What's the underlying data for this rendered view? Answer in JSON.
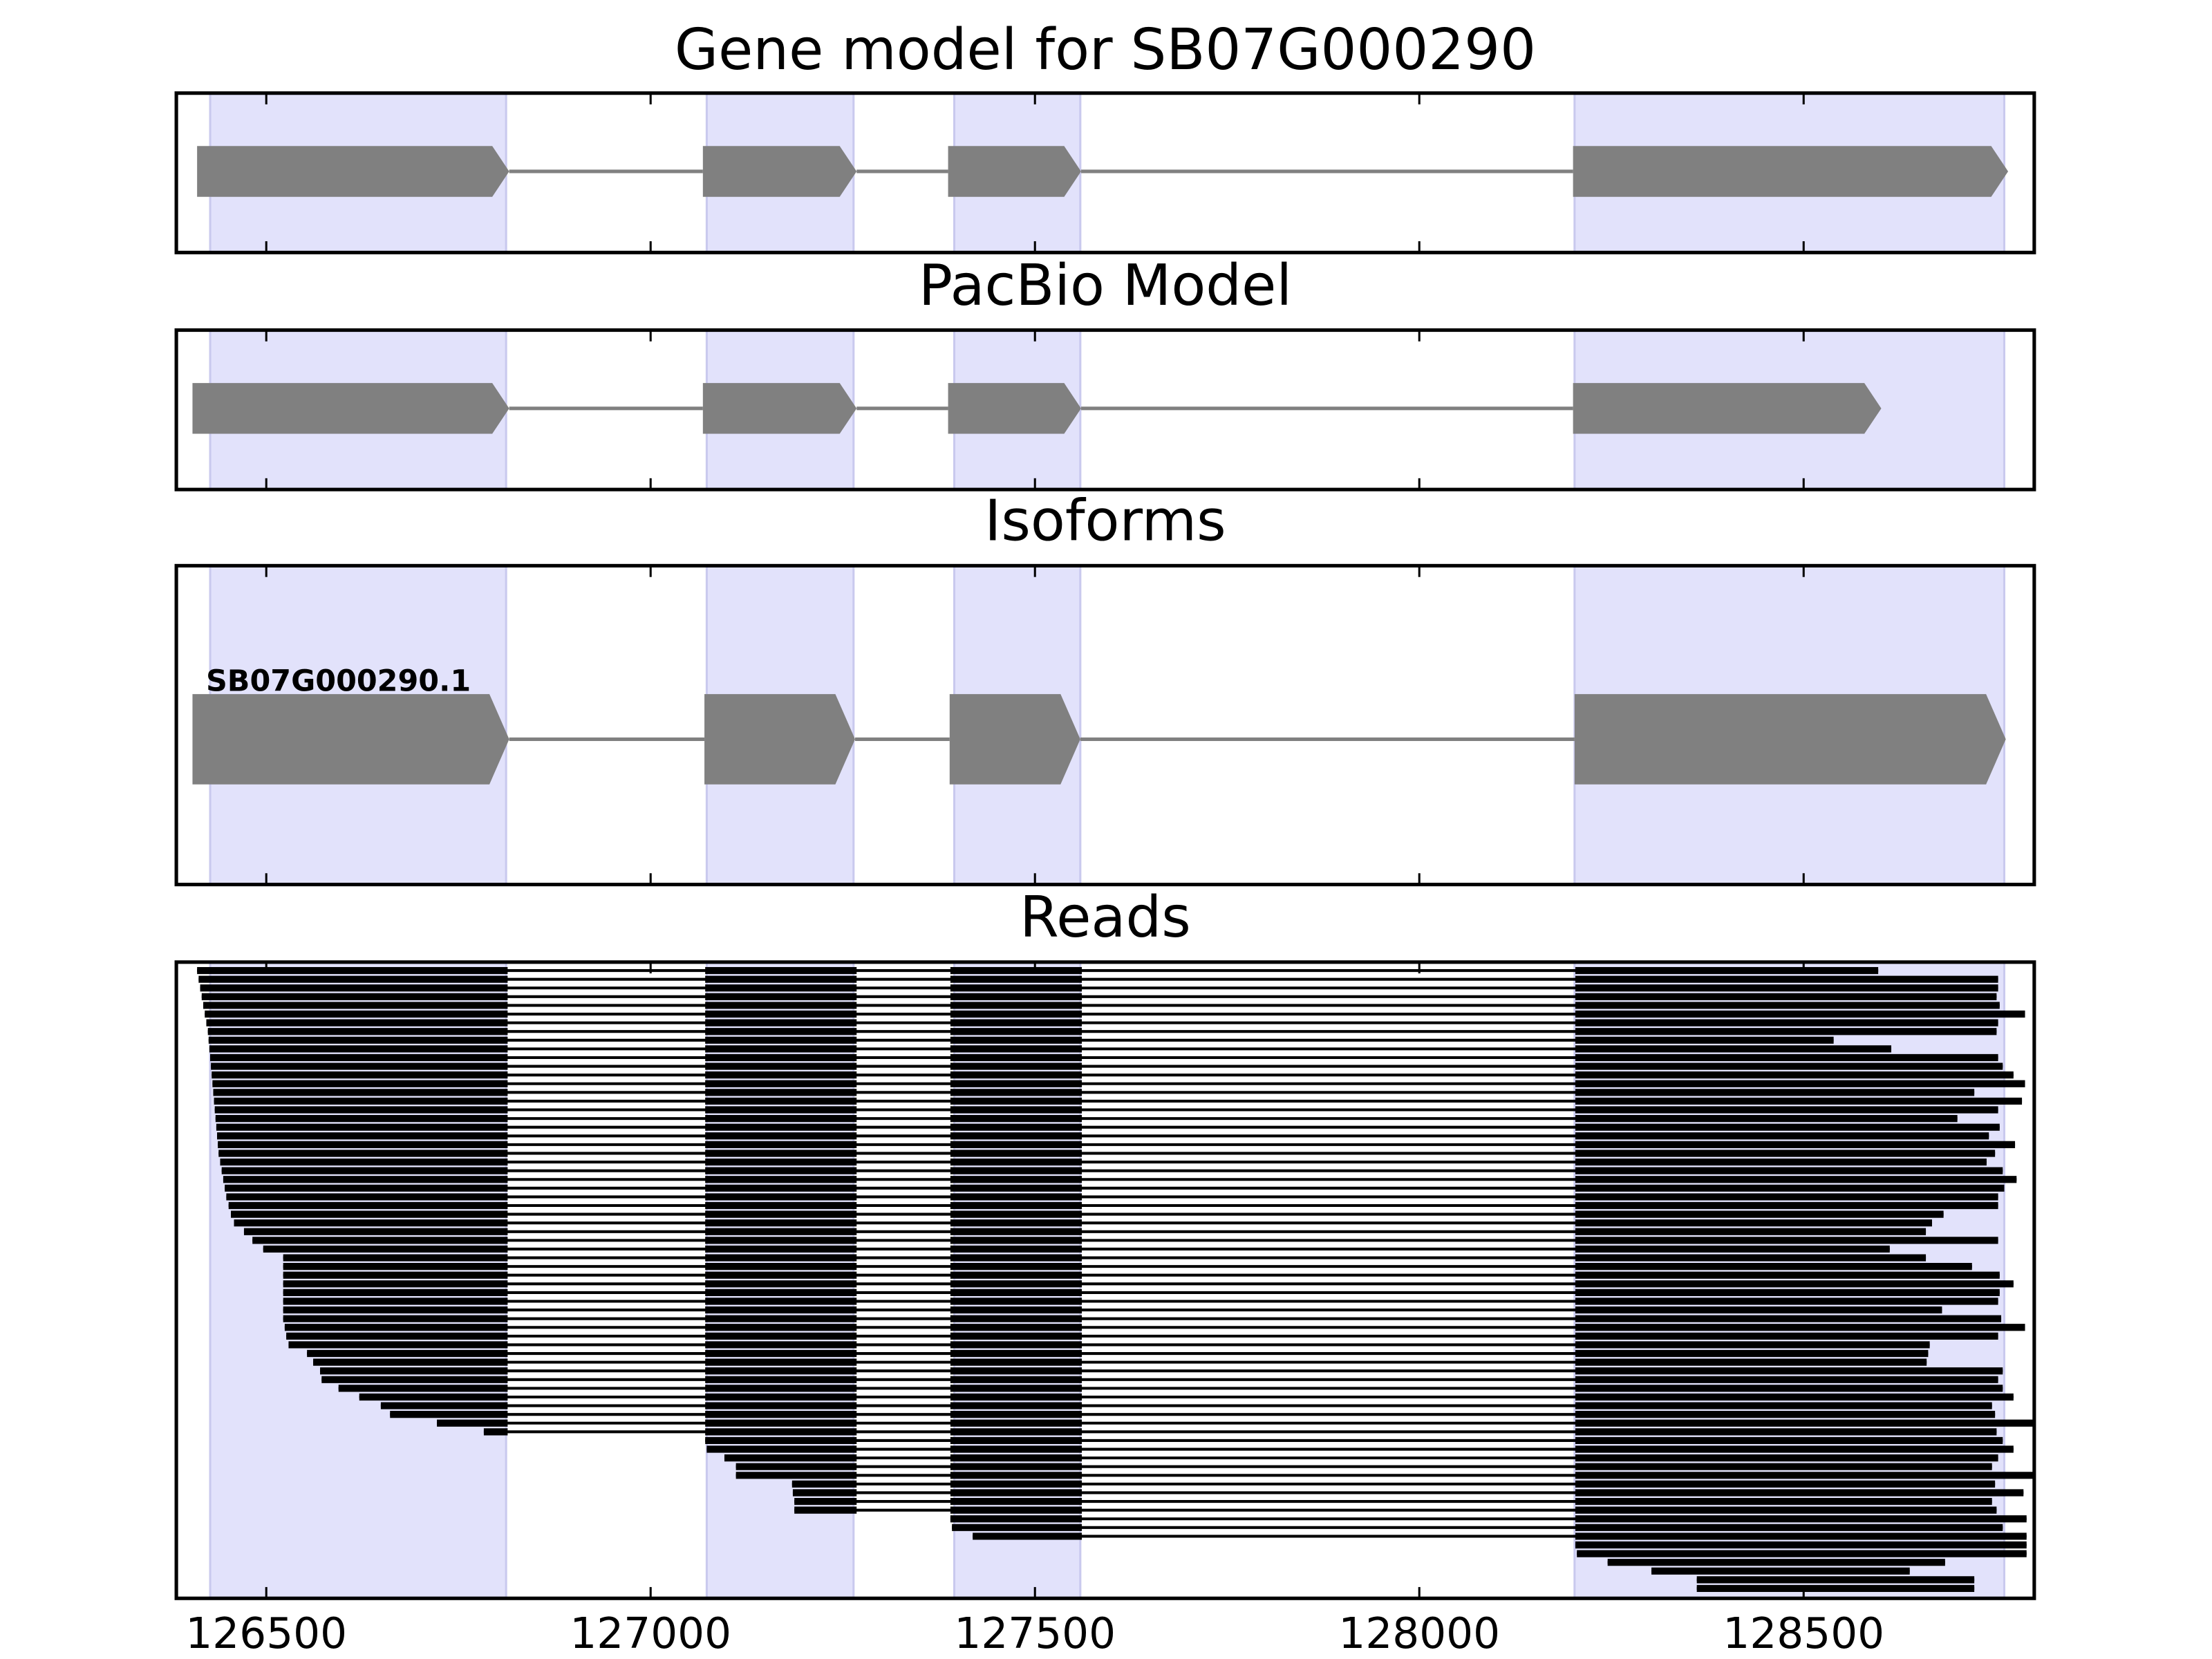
{
  "chart_data": [
    {
      "type": "gene-model",
      "title": "Gene model for SB07G000290",
      "xlim": [
        126383,
        128800
      ],
      "xticks": [
        126500,
        127000,
        127500,
        128000,
        128500
      ],
      "highlight": [
        [
          126427,
          126812
        ],
        [
          127073,
          127264
        ],
        [
          127395,
          127559
        ],
        [
          128202,
          128761
        ]
      ],
      "highlight_color": "#e2e2fb",
      "color": "#808080",
      "exons": [
        [
          126410,
          126816
        ],
        [
          127068,
          127268
        ],
        [
          127387,
          127560
        ],
        [
          128200,
          128766
        ]
      ]
    },
    {
      "type": "gene-model",
      "title": "PacBio Model",
      "xlim": [
        126383,
        128800
      ],
      "xticks": [
        126500,
        127000,
        127500,
        128000,
        128500
      ],
      "highlight": [
        [
          126427,
          126812
        ],
        [
          127073,
          127264
        ],
        [
          127395,
          127559
        ],
        [
          128202,
          128761
        ]
      ],
      "highlight_color": "#e2e2fb",
      "color": "#808080",
      "exons": [
        [
          126404,
          126816
        ],
        [
          127068,
          127268
        ],
        [
          127387,
          127560
        ],
        [
          128200,
          128601
        ]
      ]
    },
    {
      "type": "gene-model",
      "title": "Isoforms",
      "label": "SB07G000290.1",
      "xlim": [
        126383,
        128800
      ],
      "xticks": [
        126500,
        127000,
        127500,
        128000,
        128500
      ],
      "highlight": [
        [
          126427,
          126812
        ],
        [
          127073,
          127264
        ],
        [
          127395,
          127559
        ],
        [
          128202,
          128761
        ]
      ],
      "highlight_color": "#e2e2fb",
      "color": "#808080",
      "exons": [
        [
          126404,
          126816
        ],
        [
          127070,
          127266
        ],
        [
          127389,
          127559
        ],
        [
          128202,
          128763
        ]
      ]
    },
    {
      "type": "reads",
      "title": "Reads",
      "xlim": [
        126383,
        128800
      ],
      "xticks": [
        126500,
        127000,
        127500,
        128000,
        128500
      ],
      "highlight": [
        [
          126427,
          126812
        ],
        [
          127073,
          127264
        ],
        [
          127395,
          127559
        ],
        [
          128202,
          128761
        ]
      ],
      "highlight_color": "#e2e2fb",
      "color": "#000000",
      "exons": [
        [
          126410,
          126814
        ],
        [
          127071,
          127268
        ],
        [
          127390,
          127561
        ],
        [
          128203,
          128800
        ]
      ],
      "read_starts": [
        126410,
        126412,
        126414,
        126416,
        126418,
        126420,
        126422,
        126424,
        126425,
        126426,
        126427,
        126428,
        126429,
        126430,
        126431,
        126432,
        126433,
        126434,
        126435,
        126436,
        126437,
        126438,
        126440,
        126442,
        126444,
        126446,
        126448,
        126451,
        126454,
        126458,
        126471,
        126482,
        126496,
        126522,
        126522,
        126522,
        126522,
        126522,
        126522,
        126522,
        126522,
        126524,
        126526,
        126529,
        126553,
        126561,
        126570,
        126572,
        126594,
        126621,
        126649,
        126661,
        126722,
        126783,
        127071,
        127073,
        127096,
        127111,
        127111,
        127184,
        127185,
        127187,
        127187,
        127390,
        127392,
        127419,
        128203,
        128205,
        128245,
        128302,
        128361,
        128361
      ],
      "read_ends": [
        128597,
        128753,
        128753,
        128751,
        128755,
        128788,
        128753,
        128751,
        128539,
        128614,
        128753,
        128759,
        128773,
        128788,
        128722,
        128784,
        128753,
        128700,
        128755,
        128741,
        128775,
        128749,
        128738,
        128759,
        128777,
        128761,
        128753,
        128753,
        128682,
        128667,
        128659,
        128753,
        128612,
        128659,
        128719,
        128755,
        128773,
        128755,
        128753,
        128680,
        128757,
        128788,
        128753,
        128664,
        128662,
        128660,
        128759,
        128753,
        128759,
        128773,
        128745,
        128749,
        128800,
        128751,
        128759,
        128773,
        128753,
        128745,
        128800,
        128749,
        128786,
        128745,
        128751,
        128790,
        128759,
        128790,
        128790,
        128790,
        128684,
        128638,
        128722,
        128722
      ]
    }
  ]
}
